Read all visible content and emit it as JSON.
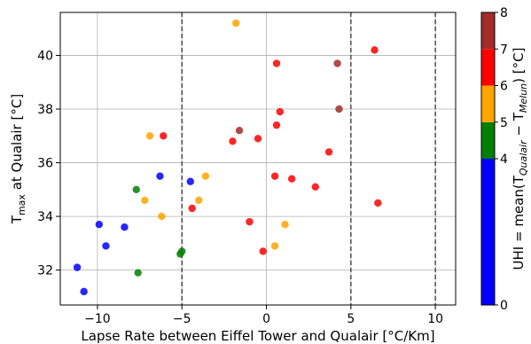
{
  "chart_data": {
    "type": "scatter",
    "title": "",
    "xlabel": "Lapse Rate between Eiffel Tower and Qualair [°C/Km]",
    "ylabel_parts": [
      "T",
      "max",
      " at Qualair [°C]"
    ],
    "xlim": [
      -12.2,
      11.2
    ],
    "ylim": [
      30.7,
      41.6
    ],
    "xticks": [
      -10,
      -5,
      0,
      5,
      10
    ],
    "yticks": [
      32,
      34,
      36,
      38,
      40
    ],
    "grid": true,
    "vlines": [
      -5,
      5,
      10
    ],
    "colorbar": {
      "label_parts": [
        "UHI = mean(T",
        "Qualair",
        " − T",
        "Melun",
        ") [°C]"
      ],
      "range": [
        0,
        8
      ],
      "ticks": [
        0,
        4,
        5,
        6,
        7,
        8
      ],
      "bands": [
        {
          "from": 0,
          "to": 4,
          "color": "#0000ff"
        },
        {
          "from": 4,
          "to": 5,
          "color": "#008000"
        },
        {
          "from": 5,
          "to": 6,
          "color": "#ffa500"
        },
        {
          "from": 6,
          "to": 7,
          "color": "#ff0000"
        },
        {
          "from": 7,
          "to": 8,
          "color": "#a52a2a"
        }
      ]
    },
    "points": [
      {
        "x": -11.2,
        "y": 32.1,
        "c": 3.5
      },
      {
        "x": -10.8,
        "y": 31.2,
        "c": 3.5
      },
      {
        "x": -9.9,
        "y": 33.7,
        "c": 3.5
      },
      {
        "x": -9.5,
        "y": 32.9,
        "c": 3.5
      },
      {
        "x": -8.4,
        "y": 33.6,
        "c": 3.5
      },
      {
        "x": -6.3,
        "y": 35.5,
        "c": 3.5
      },
      {
        "x": -4.5,
        "y": 35.3,
        "c": 3.5
      },
      {
        "x": -7.7,
        "y": 35.0,
        "c": 4.5
      },
      {
        "x": -7.6,
        "y": 31.9,
        "c": 4.5
      },
      {
        "x": -5.1,
        "y": 32.6,
        "c": 4.5
      },
      {
        "x": -5.0,
        "y": 32.7,
        "c": 4.5
      },
      {
        "x": -6.9,
        "y": 37.0,
        "c": 5.5
      },
      {
        "x": -7.2,
        "y": 34.6,
        "c": 5.5
      },
      {
        "x": -6.2,
        "y": 34.0,
        "c": 5.5
      },
      {
        "x": -3.6,
        "y": 35.5,
        "c": 5.5
      },
      {
        "x": -4.0,
        "y": 34.6,
        "c": 5.5
      },
      {
        "x": -1.8,
        "y": 41.2,
        "c": 5.5
      },
      {
        "x": 0.5,
        "y": 32.9,
        "c": 5.5
      },
      {
        "x": 1.1,
        "y": 33.7,
        "c": 5.5
      },
      {
        "x": -6.1,
        "y": 37.0,
        "c": 6.5
      },
      {
        "x": -4.4,
        "y": 34.3,
        "c": 6.5
      },
      {
        "x": -2.0,
        "y": 36.8,
        "c": 6.5
      },
      {
        "x": -1.0,
        "y": 33.8,
        "c": 6.5
      },
      {
        "x": -0.5,
        "y": 36.9,
        "c": 6.5
      },
      {
        "x": -0.2,
        "y": 32.7,
        "c": 6.5
      },
      {
        "x": 0.5,
        "y": 35.5,
        "c": 6.5
      },
      {
        "x": 0.6,
        "y": 37.4,
        "c": 6.5
      },
      {
        "x": 0.6,
        "y": 39.7,
        "c": 6.5
      },
      {
        "x": 0.8,
        "y": 37.9,
        "c": 6.5
      },
      {
        "x": 1.5,
        "y": 35.4,
        "c": 6.5
      },
      {
        "x": 2.9,
        "y": 35.1,
        "c": 6.5
      },
      {
        "x": 3.7,
        "y": 36.4,
        "c": 6.5
      },
      {
        "x": 6.4,
        "y": 40.2,
        "c": 6.5
      },
      {
        "x": 6.6,
        "y": 34.5,
        "c": 6.5
      },
      {
        "x": -1.6,
        "y": 37.2,
        "c": 7.5
      },
      {
        "x": 4.2,
        "y": 39.7,
        "c": 7.5
      },
      {
        "x": 4.3,
        "y": 38.0,
        "c": 7.5
      }
    ]
  }
}
